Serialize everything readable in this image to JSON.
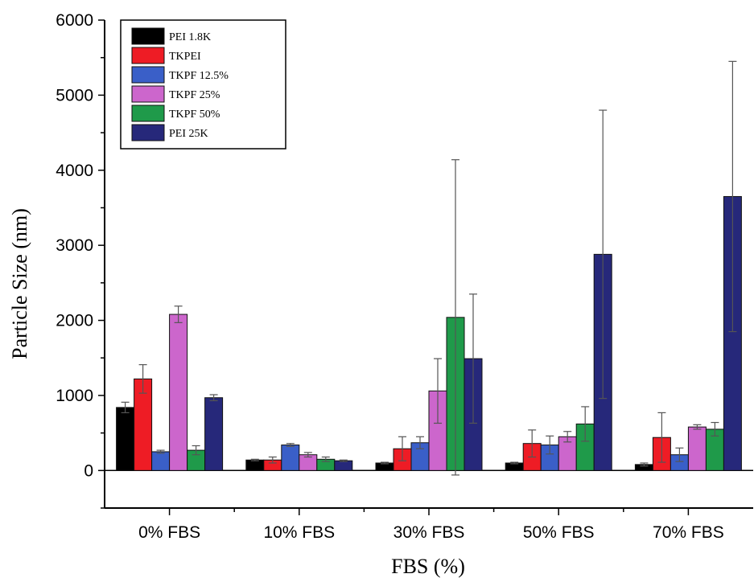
{
  "chart_data": {
    "type": "bar",
    "title": "",
    "xlabel": "FBS (%)",
    "ylabel": "Particle Size (nm)",
    "ylim": [
      -500,
      6000
    ],
    "yticks": [
      0,
      1000,
      2000,
      3000,
      4000,
      5000,
      6000
    ],
    "categories": [
      "0% FBS",
      "10% FBS",
      "30% FBS",
      "50% FBS",
      "70% FBS"
    ],
    "legend_position": "top-left",
    "series": [
      {
        "name": "PEI 1.8K",
        "color": "#000000",
        "values": [
          840,
          140,
          100,
          100,
          80
        ],
        "errors": [
          70,
          10,
          10,
          10,
          20
        ]
      },
      {
        "name": "TKPEI",
        "color": "#ee1c25",
        "values": [
          1220,
          140,
          290,
          360,
          440
        ],
        "errors": [
          190,
          40,
          160,
          180,
          330
        ]
      },
      {
        "name": "TKPF 12.5%",
        "color": "#3a5fc8",
        "values": [
          250,
          340,
          370,
          340,
          210
        ],
        "errors": [
          20,
          20,
          80,
          120,
          90
        ]
      },
      {
        "name": "TKPF 25%",
        "color": "#cc66cc",
        "values": [
          2080,
          210,
          1060,
          450,
          580
        ],
        "errors": [
          110,
          30,
          430,
          70,
          30
        ]
      },
      {
        "name": "TKPF 50%",
        "color": "#1f9a4a",
        "values": [
          270,
          150,
          2040,
          620,
          550
        ],
        "errors": [
          60,
          30,
          2100,
          230,
          90
        ]
      },
      {
        "name": "PEI 25K",
        "color": "#26287a",
        "values": [
          970,
          130,
          1490,
          2880,
          3650
        ],
        "errors": [
          40,
          10,
          860,
          1920,
          1800
        ]
      }
    ]
  }
}
